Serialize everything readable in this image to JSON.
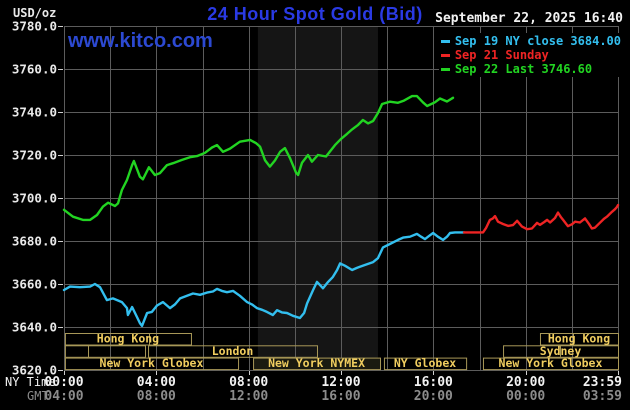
{
  "header": {
    "unit_label": "USD/oz",
    "title": "24 Hour Spot Gold (Bid)",
    "title_color": "#2a3ae4",
    "datetime": "September 22, 2025 16:40"
  },
  "watermark": {
    "text": "www.kitco.com",
    "color": "#2c49d2"
  },
  "legend": [
    {
      "label": "Sep 19 NY close 3684.00",
      "color": "#33bfef"
    },
    {
      "label": "Sep 21 Sunday",
      "color": "#ee2424"
    },
    {
      "label": "Sep 22 Last 3746.60",
      "color": "#22d422"
    }
  ],
  "colors": {
    "grid": "#5c5c5c",
    "tick": "#cfcfcf",
    "y_label": "#e9e9e9",
    "x_label_ny": "#f2f2f2",
    "x_label_gmt": "#8c8c8c",
    "session_border": "#a89858",
    "session_text": "#f0cd5f",
    "session_highlight_fill": "#1a1a10",
    "band_fill": "#151515"
  },
  "chart_data": {
    "type": "line",
    "title": "24 Hour Spot Gold (Bid)",
    "y_axis": {
      "unit": "USD/oz",
      "min": 3620,
      "max": 3780,
      "step": 20,
      "tick_labels": [
        "3780.0",
        "3760.0",
        "3740.0",
        "3720.0",
        "3700.0",
        "3680.0",
        "3660.0",
        "3640.0",
        "3620.0"
      ]
    },
    "x_axis": {
      "row_label_ny": "NY Time",
      "row_label_gmt": "GMT",
      "range_hours": [
        0,
        24
      ],
      "ticks": [
        {
          "t": 0,
          "ny": "00:00",
          "gmt": "04:00"
        },
        {
          "t": 4,
          "ny": "04:00",
          "gmt": "08:00"
        },
        {
          "t": 8,
          "ny": "08:00",
          "gmt": "12:00"
        },
        {
          "t": 12,
          "ny": "12:00",
          "gmt": "16:00"
        },
        {
          "t": 16,
          "ny": "16:00",
          "gmt": "20:00"
        },
        {
          "t": 20,
          "ny": "20:00",
          "gmt": "00:00"
        },
        {
          "t": 24,
          "ny": "23:59",
          "gmt": "03:59"
        }
      ]
    },
    "nymex_band": {
      "t0": 8.4,
      "t1": 13.6
    },
    "series": [
      {
        "name": "Sep 19 NY close",
        "color": "#33bfef",
        "close": 3684.0,
        "points": [
          [
            0,
            3657.2
          ],
          [
            0.26,
            3658.8
          ],
          [
            0.69,
            3658.5
          ],
          [
            1.13,
            3658.8
          ],
          [
            1.34,
            3660
          ],
          [
            1.56,
            3658.5
          ],
          [
            1.86,
            3652.5
          ],
          [
            2.12,
            3653.3
          ],
          [
            2.51,
            3651.6
          ],
          [
            2.73,
            3648.8
          ],
          [
            2.77,
            3645.6
          ],
          [
            2.95,
            3649.3
          ],
          [
            3.16,
            3644.7
          ],
          [
            3.29,
            3641.8
          ],
          [
            3.38,
            3640.5
          ],
          [
            3.6,
            3646.5
          ],
          [
            3.81,
            3647
          ],
          [
            4.03,
            3650
          ],
          [
            4.29,
            3651.6
          ],
          [
            4.59,
            3648.8
          ],
          [
            4.81,
            3650.5
          ],
          [
            5.03,
            3653.3
          ],
          [
            5.33,
            3654.5
          ],
          [
            5.59,
            3655.6
          ],
          [
            5.89,
            3655
          ],
          [
            6.19,
            3656
          ],
          [
            6.45,
            3656.5
          ],
          [
            6.63,
            3657.7
          ],
          [
            6.84,
            3656.8
          ],
          [
            7.06,
            3656.2
          ],
          [
            7.32,
            3656.8
          ],
          [
            7.62,
            3654.5
          ],
          [
            7.93,
            3651.6
          ],
          [
            8.14,
            3650.5
          ],
          [
            8.36,
            3648.8
          ],
          [
            8.58,
            3648
          ],
          [
            8.79,
            3647
          ],
          [
            9.05,
            3645.6
          ],
          [
            9.23,
            3647.8
          ],
          [
            9.44,
            3646.8
          ],
          [
            9.66,
            3646.5
          ],
          [
            9.92,
            3645.2
          ],
          [
            10.22,
            3644.2
          ],
          [
            10.4,
            3646.5
          ],
          [
            10.53,
            3651
          ],
          [
            10.79,
            3657.2
          ],
          [
            10.96,
            3661
          ],
          [
            11.09,
            3659.5
          ],
          [
            11.22,
            3658
          ],
          [
            11.44,
            3661
          ],
          [
            11.65,
            3663.3
          ],
          [
            11.83,
            3666.5
          ],
          [
            11.96,
            3669.6
          ],
          [
            12.17,
            3668.5
          ],
          [
            12.48,
            3666.5
          ],
          [
            12.69,
            3667.5
          ],
          [
            12.82,
            3668
          ],
          [
            13.08,
            3669
          ],
          [
            13.39,
            3670.2
          ],
          [
            13.6,
            3672
          ],
          [
            13.82,
            3677
          ],
          [
            14.12,
            3678.6
          ],
          [
            14.34,
            3679.8
          ],
          [
            14.47,
            3680.5
          ],
          [
            14.69,
            3681.6
          ],
          [
            14.99,
            3682
          ],
          [
            15.29,
            3683.3
          ],
          [
            15.47,
            3682
          ],
          [
            15.64,
            3680.9
          ],
          [
            15.81,
            3682.3
          ],
          [
            15.99,
            3683.7
          ],
          [
            16.2,
            3682
          ],
          [
            16.42,
            3680.5
          ],
          [
            16.59,
            3682
          ],
          [
            16.72,
            3683.7
          ],
          [
            16.94,
            3684
          ],
          [
            17.33,
            3684
          ]
        ]
      },
      {
        "name": "Sep 21 Sunday",
        "color": "#ee2424",
        "points": [
          [
            17.33,
            3684
          ],
          [
            18.15,
            3684
          ],
          [
            18.28,
            3686
          ],
          [
            18.45,
            3689.8
          ],
          [
            18.58,
            3690.5
          ],
          [
            18.67,
            3691.6
          ],
          [
            18.8,
            3689
          ],
          [
            19.02,
            3687.9
          ],
          [
            19.24,
            3687
          ],
          [
            19.45,
            3687.4
          ],
          [
            19.63,
            3689.4
          ],
          [
            19.84,
            3686.7
          ],
          [
            20.06,
            3685.5
          ],
          [
            20.27,
            3685.8
          ],
          [
            20.49,
            3688.4
          ],
          [
            20.62,
            3687.5
          ],
          [
            20.8,
            3688.8
          ],
          [
            20.93,
            3689.8
          ],
          [
            21.06,
            3688.6
          ],
          [
            21.27,
            3690.7
          ],
          [
            21.4,
            3693.2
          ],
          [
            21.53,
            3691
          ],
          [
            21.62,
            3689.8
          ],
          [
            21.83,
            3686.9
          ],
          [
            22.01,
            3687.8
          ],
          [
            22.14,
            3689
          ],
          [
            22.35,
            3688.6
          ],
          [
            22.57,
            3690.5
          ],
          [
            22.74,
            3688
          ],
          [
            22.87,
            3685.8
          ],
          [
            23,
            3686.2
          ],
          [
            23.22,
            3688.5
          ],
          [
            23.39,
            3690.3
          ],
          [
            23.52,
            3691.3
          ],
          [
            23.74,
            3693.6
          ],
          [
            23.87,
            3694.8
          ],
          [
            23.95,
            3695.7
          ],
          [
            24,
            3696.7
          ]
        ]
      },
      {
        "name": "Sep 22",
        "color": "#22d422",
        "last": 3746.6,
        "points": [
          [
            0,
            3694.5
          ],
          [
            0.39,
            3691.3
          ],
          [
            0.82,
            3689.8
          ],
          [
            1.13,
            3689.8
          ],
          [
            1.43,
            3692.1
          ],
          [
            1.69,
            3696
          ],
          [
            1.91,
            3697.8
          ],
          [
            2.21,
            3696.3
          ],
          [
            2.34,
            3697.5
          ],
          [
            2.51,
            3703.7
          ],
          [
            2.73,
            3708.4
          ],
          [
            2.95,
            3715.3
          ],
          [
            3.03,
            3717.2
          ],
          [
            3.29,
            3709.9
          ],
          [
            3.42,
            3708.7
          ],
          [
            3.68,
            3714.3
          ],
          [
            3.94,
            3710.7
          ],
          [
            4.16,
            3711.6
          ],
          [
            4.46,
            3715.3
          ],
          [
            4.72,
            3716.2
          ],
          [
            5.11,
            3717.7
          ],
          [
            5.46,
            3719
          ],
          [
            5.76,
            3719.5
          ],
          [
            6.11,
            3721
          ],
          [
            6.41,
            3723.5
          ],
          [
            6.63,
            3724.6
          ],
          [
            6.89,
            3721.5
          ],
          [
            7.19,
            3723
          ],
          [
            7.62,
            3726.2
          ],
          [
            8.06,
            3727
          ],
          [
            8.32,
            3725.5
          ],
          [
            8.49,
            3723.9
          ],
          [
            8.71,
            3717.5
          ],
          [
            8.92,
            3714.6
          ],
          [
            9.14,
            3717.5
          ],
          [
            9.36,
            3721.5
          ],
          [
            9.57,
            3723.2
          ],
          [
            9.79,
            3718.5
          ],
          [
            10.05,
            3711.8
          ],
          [
            10.14,
            3710.7
          ],
          [
            10.31,
            3716.4
          ],
          [
            10.57,
            3720
          ],
          [
            10.74,
            3716.9
          ],
          [
            11,
            3720
          ],
          [
            11.35,
            3719.3
          ],
          [
            11.74,
            3724.6
          ],
          [
            12,
            3727.5
          ],
          [
            12.26,
            3729.8
          ],
          [
            12.48,
            3731.9
          ],
          [
            12.74,
            3734
          ],
          [
            12.95,
            3736.3
          ],
          [
            13.17,
            3734.7
          ],
          [
            13.39,
            3735.8
          ],
          [
            13.6,
            3739.5
          ],
          [
            13.78,
            3743.7
          ],
          [
            14.12,
            3744.8
          ],
          [
            14.47,
            3744.3
          ],
          [
            14.73,
            3745.3
          ],
          [
            15.08,
            3747.4
          ],
          [
            15.29,
            3747.4
          ],
          [
            15.55,
            3744.5
          ],
          [
            15.73,
            3742.8
          ],
          [
            16.07,
            3744.5
          ],
          [
            16.29,
            3746.3
          ],
          [
            16.59,
            3744.9
          ],
          [
            16.85,
            3746.6
          ]
        ]
      }
    ],
    "sessions": [
      {
        "row": 0,
        "t0": 0.04,
        "t1": 5.5,
        "label": "Hong Kong",
        "dividers": [
          3.68
        ]
      },
      {
        "row": 0,
        "t0": 20.62,
        "t1": 24,
        "label": "Hong Kong",
        "dividers": [
          22.05
        ]
      },
      {
        "row": 1,
        "t0": 0.04,
        "t1": 1.04,
        "label": ""
      },
      {
        "row": 1,
        "t0": 1.04,
        "t1": 3.51,
        "label": ""
      },
      {
        "row": 1,
        "t0": 3.64,
        "t1": 10.96,
        "label": "London"
      },
      {
        "row": 1,
        "t0": 19.02,
        "t1": 24,
        "label": "Sydney",
        "dividers": [
          21.48
        ]
      },
      {
        "row": 2,
        "t0": 0.04,
        "t1": 7.54,
        "label": "New York Globex"
      },
      {
        "row": 2,
        "t0": 8.19,
        "t1": 13.69,
        "label": "New York NYMEX",
        "highlight": true
      },
      {
        "row": 2,
        "t0": 13.86,
        "t1": 17.42,
        "label": "NY Globex"
      },
      {
        "row": 2,
        "t0": 18.15,
        "t1": 24,
        "label": "New York Globex"
      }
    ]
  }
}
